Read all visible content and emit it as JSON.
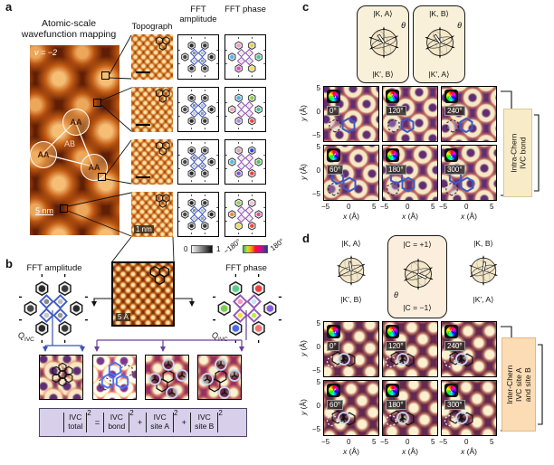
{
  "a": {
    "panel_label": "a",
    "title": "Atomic-scale wavefunction mapping",
    "filling_label": "ν = −2",
    "scale_bar_label": "5 nm",
    "site_labels": [
      "AA",
      "AA",
      "AA"
    ],
    "center_label": "AB",
    "col_headers": {
      "topograph": "Topograph",
      "fft_amplitude": "FFT amplitude",
      "fft_phase": "FFT phase"
    },
    "row4_scale_label": "1 nm"
  },
  "colorbars": {
    "amplitude": {
      "min": "0",
      "max": "1"
    },
    "phase": {
      "min": "−180°",
      "max": "180°"
    }
  },
  "b": {
    "panel_label": "b",
    "amp_title": "FFT amplitude",
    "phase_title": "FFT phase",
    "q_label": "Q",
    "q_sub": "IVC",
    "scale_label": "5 Å",
    "equation": {
      "terms": [
        {
          "top": "IVC",
          "bottom": "total",
          "sup": "2"
        },
        {
          "top": "IVC",
          "bottom": "bond",
          "sup": "2"
        },
        {
          "top": "IVC",
          "bottom": "site A",
          "sup": "2"
        },
        {
          "top": "IVC",
          "bottom": "site B",
          "sup": "2"
        }
      ],
      "ops": [
        "=",
        "+",
        "+"
      ]
    }
  },
  "c": {
    "panel_label": "c",
    "spheres": [
      {
        "top": "|K, A⟩",
        "bottom": "|K′, B⟩",
        "theta": "θ"
      },
      {
        "top": "|K, B⟩",
        "bottom": "|K′, A⟩",
        "theta": "θ"
      }
    ],
    "maps": [
      {
        "label": "0°",
        "angle_deg": 0
      },
      {
        "label": "120°",
        "angle_deg": 120
      },
      {
        "label": "240°",
        "angle_deg": 240
      },
      {
        "label": "60°",
        "angle_deg": 60
      },
      {
        "label": "180°",
        "angle_deg": 180
      },
      {
        "label": "300°",
        "angle_deg": 300
      }
    ],
    "axis": {
      "x_var": "x",
      "x_unit": "(Å)",
      "y_var": "y",
      "y_unit": "(Å)",
      "x_ticks": [
        "−5",
        "0",
        "5"
      ],
      "y_ticks": [
        "5",
        "0",
        "−5"
      ]
    },
    "bracket_label_line1": "Intra-Chern",
    "bracket_label_line2": "IVC bond",
    "bracket_label_line3": ""
  },
  "d": {
    "panel_label": "d",
    "spheres": [
      {
        "top": "|K, A⟩",
        "bottom": "|K′, B⟩"
      },
      {
        "top": "|C = +1⟩",
        "bottom": "|C = −1⟩",
        "theta": "θ"
      },
      {
        "top": "|K, B⟩",
        "bottom": "|K′, A⟩"
      }
    ],
    "maps": [
      {
        "label": "0°",
        "angle_deg": 0
      },
      {
        "label": "120°",
        "angle_deg": 120
      },
      {
        "label": "240°",
        "angle_deg": 240
      },
      {
        "label": "60°",
        "angle_deg": 60
      },
      {
        "label": "180°",
        "angle_deg": 180
      },
      {
        "label": "300°",
        "angle_deg": 300
      }
    ],
    "axis": {
      "x_var": "x",
      "x_unit": "(Å)",
      "y_var": "y",
      "y_unit": "(Å)",
      "x_ticks": [
        "−5",
        "0",
        "5"
      ],
      "y_ticks": [
        "5",
        "0",
        "−5"
      ]
    },
    "bracket_label_line1": "Inter-Chern",
    "bracket_label_line2": "IVC site A",
    "bracket_label_line3": "and site B"
  },
  "fft_palettes": {
    "diamond_amp": "#3f5bc4",
    "diamond_phase": "#9257b5",
    "amp_outer": [
      "#2b2b2b",
      "#3a3a3a",
      "#2b2b2b",
      "#474747",
      "#2b2b2b",
      "#3a3a3a"
    ],
    "amp_inner": [
      "#9a9a9a",
      "#c8c8c8",
      "#8a8a8a",
      "#bdbdbd"
    ],
    "phase_rows": [
      {
        "outer": [
          "#3ecf8e",
          "#f5e13a",
          "#f23fd0",
          "#49b8f0",
          "#f59bc7",
          "#e8d23a"
        ],
        "inner": [
          "#cfe6f5",
          "#f5d9e8",
          "#d9f0d5",
          "#efe6cf"
        ]
      },
      {
        "outer": [
          "#37c9a0",
          "#ef4444",
          "#b98ae0",
          "#f0a0b8",
          "#46b6e8",
          "#8ad04a"
        ],
        "inner": [
          "#efe0f5",
          "#f5efe0",
          "#e0f0e8",
          "#e8e8f5"
        ]
      },
      {
        "outer": [
          "#4ad05a",
          "#ef4040",
          "#8a4ae0",
          "#46c0e8",
          "#f09ab8",
          "#2a48e0"
        ],
        "inner": [
          "#f0e0e8",
          "#e0eaf5",
          "#e8f0da",
          "#f5e8da"
        ]
      },
      {
        "outer": [
          "#f23fa0",
          "#ef4444",
          "#f5e13a",
          "#f08a2a",
          "#9ad04a",
          "#f5c0d8"
        ],
        "inner": [
          "#e8f5da",
          "#f5dae8",
          "#daeaf5",
          "#f5eada"
        ]
      }
    ],
    "phase_b": {
      "outer": [
        "#8a5ae0",
        "#f57070",
        "#4a6ae8",
        "#7ad04a",
        "#57d089",
        "#ef4040"
      ],
      "inner": [
        "#b8f04a",
        "#f5e13a",
        "#f59bc7",
        "#c0e8f5"
      ]
    }
  }
}
